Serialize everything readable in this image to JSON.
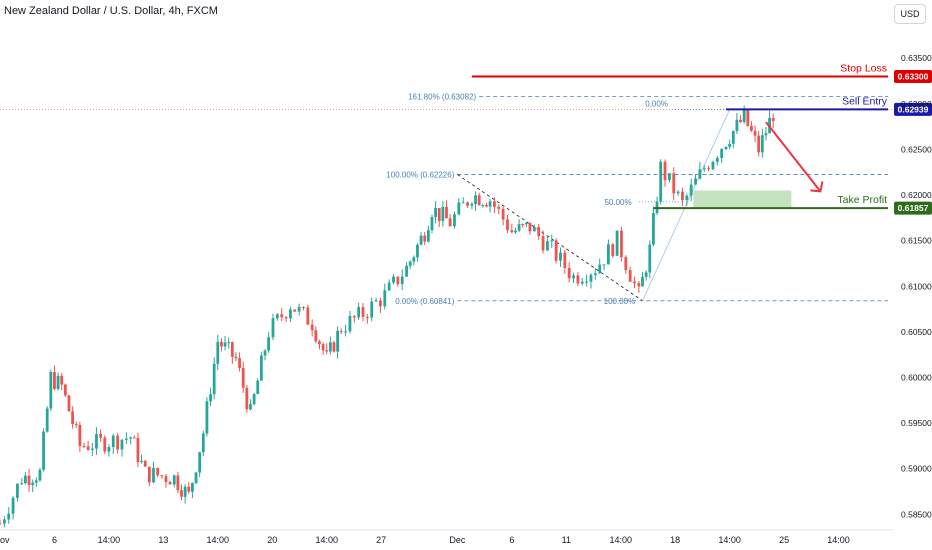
{
  "header": {
    "title": "New Zealand Dollar / U.S. Dollar, 4h, FXCM",
    "currency": "USD"
  },
  "chart_data": {
    "type": "candlestick",
    "ylim": [
      0.5835,
      0.637
    ],
    "y_ticks": [
      "0.63500",
      "0.63000",
      "0.62500",
      "0.62000",
      "0.61500",
      "0.61000",
      "0.60500",
      "0.60000",
      "0.59500",
      "0.59000",
      "0.58500"
    ],
    "x_ticks": [
      "ov",
      "6",
      "14:00",
      "13",
      "14:00",
      "20",
      "14:00",
      "27",
      "Dec",
      "6",
      "11",
      "14:00",
      "18",
      "14:00",
      "25",
      "14:00"
    ],
    "x_tick_pos": [
      0.0,
      0.75,
      1.5,
      2.25,
      3.0,
      3.75,
      4.5,
      5.25,
      6.3,
      7.05,
      7.8,
      8.55,
      9.3,
      10.05,
      10.8,
      11.55
    ],
    "x_range": [
      0,
      12.3
    ],
    "candles_summary": "Approximate 4h candles, anchors [xDay, price]",
    "anchors": [
      [
        0.0,
        0.584
      ],
      [
        0.3,
        0.589
      ],
      [
        0.55,
        0.5895
      ],
      [
        0.7,
        0.6
      ],
      [
        0.85,
        0.599
      ],
      [
        1.1,
        0.5925
      ],
      [
        1.5,
        0.593
      ],
      [
        1.8,
        0.5935
      ],
      [
        2.0,
        0.5895
      ],
      [
        2.4,
        0.589
      ],
      [
        2.6,
        0.587
      ],
      [
        2.8,
        0.594
      ],
      [
        3.0,
        0.604
      ],
      [
        3.25,
        0.602
      ],
      [
        3.45,
        0.596
      ],
      [
        3.7,
        0.605
      ],
      [
        4.0,
        0.608
      ],
      [
        4.3,
        0.606
      ],
      [
        4.5,
        0.602
      ],
      [
        4.7,
        0.6055
      ],
      [
        5.0,
        0.607
      ],
      [
        5.3,
        0.609
      ],
      [
        5.6,
        0.612
      ],
      [
        5.85,
        0.616
      ],
      [
        5.95,
        0.6185
      ],
      [
        6.2,
        0.617
      ],
      [
        6.5,
        0.62
      ],
      [
        6.75,
        0.6195
      ],
      [
        7.05,
        0.616
      ],
      [
        7.3,
        0.6165
      ],
      [
        7.6,
        0.614
      ],
      [
        7.9,
        0.611
      ],
      [
        8.2,
        0.612
      ],
      [
        8.5,
        0.615
      ],
      [
        8.8,
        0.609
      ],
      [
        8.95,
        0.614
      ],
      [
        9.1,
        0.623
      ],
      [
        9.4,
        0.619
      ],
      [
        9.7,
        0.623
      ],
      [
        10.0,
        0.626
      ],
      [
        10.25,
        0.6285
      ],
      [
        10.45,
        0.625
      ],
      [
        10.65,
        0.629
      ]
    ],
    "fib_levels": [
      {
        "label": "161.80% (0.63082)",
        "price": 0.63082
      },
      {
        "label": "100.00% (0.62226)",
        "price": 0.62226
      },
      {
        "label": "50.00%",
        "price": 0.61925
      },
      {
        "label": "0.00% (0.60841)",
        "price": 0.60841
      },
      {
        "label": "100.00%",
        "price": 0.60841
      },
      {
        "label": "0.00%",
        "price": 0.62939
      }
    ],
    "levels": [
      {
        "name": "Stop Loss",
        "price": 0.633,
        "price_label": "0.63300",
        "color": "#e00000"
      },
      {
        "name": "Sell Entry",
        "price": 0.62939,
        "price_label": "0.62939",
        "color": "#1a1aa6"
      },
      {
        "name": "Take Profit",
        "price": 0.61857,
        "price_label": "0.61857",
        "color": "#2e6b1a"
      }
    ],
    "colors": {
      "up": "#26a69a",
      "down": "#ef5350",
      "fib": "#4a7fb5",
      "zone": "#b8dcb0"
    }
  }
}
